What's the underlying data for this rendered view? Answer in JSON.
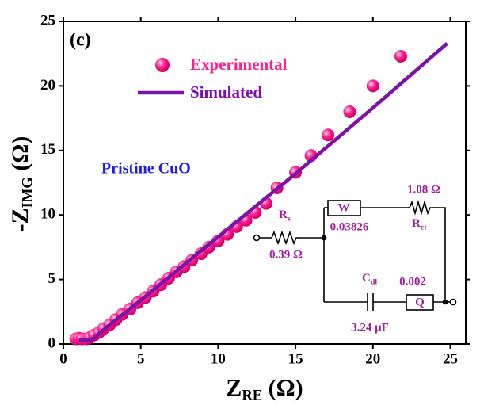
{
  "chart_data": {
    "type": "scatter",
    "annotation": "(c)",
    "label": "Pristine CuO",
    "x_label": {
      "main": "Z",
      "sub": "RE",
      "unit": " (Ω)"
    },
    "y_label": {
      "main": "-Z",
      "sub": "IMG",
      "unit": " (Ω)"
    },
    "xlim": [
      0,
      26
    ],
    "ylim": [
      0,
      25
    ],
    "xticks": [
      0,
      5,
      10,
      15,
      20,
      25
    ],
    "yticks": [
      0,
      5,
      10,
      15,
      20,
      25
    ],
    "series": [
      {
        "name": "Experimental",
        "color": "#ff1f8f",
        "style": "marker",
        "x": [
          0.8,
          1.0,
          1.2,
          1.5,
          1.7,
          2.0,
          2.3,
          2.6,
          3.0,
          3.4,
          3.8,
          4.3,
          4.8,
          5.3,
          5.8,
          6.3,
          6.8,
          7.3,
          7.8,
          8.3,
          8.9,
          9.4,
          10.0,
          10.6,
          11.2,
          11.8,
          12.4,
          13.1,
          13.8,
          15.0,
          16.0,
          17.1,
          18.5,
          20.0,
          21.8
        ],
        "values": [
          0.4,
          0.45,
          0.4,
          0.4,
          0.5,
          0.7,
          0.9,
          1.2,
          1.5,
          1.9,
          2.3,
          2.7,
          3.2,
          3.6,
          4.1,
          4.6,
          5.1,
          5.6,
          6.0,
          6.5,
          7.0,
          7.5,
          8.0,
          8.5,
          9.1,
          9.6,
          10.2,
          10.9,
          12.1,
          13.3,
          14.6,
          16.2,
          18.0,
          20.0,
          22.3
        ]
      },
      {
        "name": "Simulated",
        "color": "#7d12a8",
        "style": "line",
        "x": [
          1.0,
          1.5,
          1.8,
          2.2,
          3.0,
          5.0,
          10.0,
          15.0,
          20.0,
          24.8
        ],
        "values": [
          0.35,
          0.3,
          0.3,
          0.7,
          1.5,
          3.4,
          8.3,
          13.2,
          18.3,
          23.3
        ]
      }
    ],
    "circuit": {
      "rs": {
        "main": "R",
        "sub": "s"
      },
      "rs_value": "0.39 Ω",
      "w": "W",
      "w_value": "0.03826",
      "rct": {
        "main": "R",
        "sub": "ct"
      },
      "rct_value": "1.08 Ω",
      "cdl": {
        "main": "C",
        "sub": "dl"
      },
      "cdl_value": "3.24 μF",
      "q": "Q",
      "q_value": "0.002"
    }
  }
}
